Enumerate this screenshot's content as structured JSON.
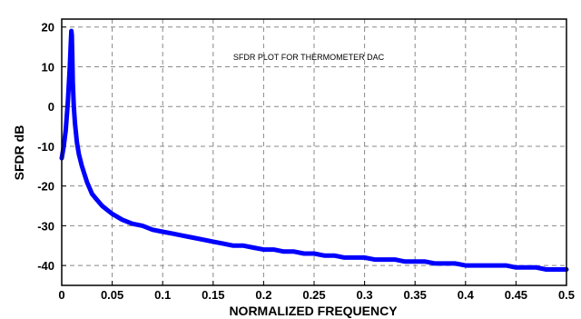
{
  "chart_data": {
    "type": "line",
    "title": "SFDR PLOT FOR THERMOMETER DAC",
    "xlabel": "NORMALIZED FREQUENCY",
    "ylabel": "SFDR dB",
    "xlim": [
      0,
      0.5
    ],
    "ylim": [
      -45,
      22
    ],
    "xticks": [
      "0",
      "0.05",
      "0.1",
      "0.15",
      "0.2",
      "0.25",
      "0.3",
      "0.35",
      "0.4",
      "0.45",
      "0.5"
    ],
    "yticks": [
      "20",
      "10",
      "0",
      "-10",
      "-20",
      "-30",
      "-40"
    ],
    "grid": true,
    "series": [
      {
        "color": "#0000ff",
        "x": [
          0,
          0.002,
          0.004,
          0.006,
          0.008,
          0.009,
          0.0095,
          0.01,
          0.0105,
          0.011,
          0.012,
          0.013,
          0.015,
          0.017,
          0.02,
          0.025,
          0.03,
          0.035,
          0.04,
          0.045,
          0.05,
          0.06,
          0.07,
          0.08,
          0.09,
          0.1,
          0.11,
          0.12,
          0.13,
          0.14,
          0.15,
          0.16,
          0.17,
          0.18,
          0.19,
          0.2,
          0.21,
          0.22,
          0.23,
          0.24,
          0.25,
          0.26,
          0.27,
          0.28,
          0.29,
          0.3,
          0.31,
          0.32,
          0.33,
          0.34,
          0.35,
          0.36,
          0.37,
          0.38,
          0.39,
          0.4,
          0.41,
          0.42,
          0.43,
          0.44,
          0.45,
          0.46,
          0.47,
          0.48,
          0.49,
          0.5
        ],
        "y": [
          -13,
          -10,
          -6,
          1,
          10,
          16,
          19,
          18,
          12,
          6,
          0,
          -4,
          -9,
          -12,
          -15,
          -19,
          -22,
          -23.5,
          -25,
          -26,
          -27,
          -28.5,
          -29.5,
          -30,
          -31,
          -31.5,
          -32,
          -32.5,
          -33,
          -33.5,
          -34,
          -34.5,
          -35,
          -35,
          -35.5,
          -36,
          -36,
          -36.5,
          -36.5,
          -37,
          -37,
          -37.5,
          -37.5,
          -38,
          -38,
          -38,
          -38.5,
          -38.5,
          -38.5,
          -39,
          -39,
          -39,
          -39.5,
          -39.5,
          -39.5,
          -40,
          -40,
          -40,
          -40,
          -40,
          -40.5,
          -40.5,
          -40.5,
          -41,
          -41,
          -41
        ]
      }
    ]
  }
}
